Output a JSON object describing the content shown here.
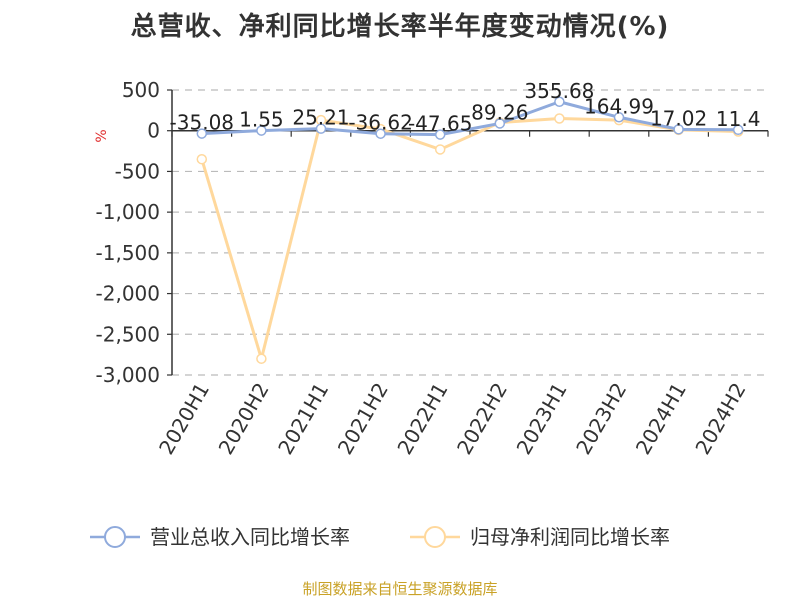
{
  "title": "总营收、净利同比增长率半年度变动情况(%)",
  "source": "制图数据来自恒生聚源数据库",
  "colors": {
    "revenue": "#8faadc",
    "profit": "#ffd89c",
    "grid": "#bbbbbb",
    "axis": "#333333",
    "unit": "#e03030"
  },
  "chart_data": {
    "type": "line",
    "categories": [
      "2020H1",
      "2020H2",
      "2021H1",
      "2021H2",
      "2022H1",
      "2022H2",
      "2023H1",
      "2023H2",
      "2024H1",
      "2024H2"
    ],
    "ylim": [
      -3000,
      500
    ],
    "yticks": [
      500,
      0,
      -500,
      -1000,
      -1500,
      -2000,
      -2500,
      -3000
    ],
    "ytick_labels": [
      "500",
      "0",
      "-500",
      "-1,000",
      "-1,500",
      "-2,000",
      "-2,500",
      "-3,000"
    ],
    "yunit": "%",
    "grid": true,
    "legend_position": "bottom",
    "series": [
      {
        "name": "营业总收入同比增长率",
        "values": [
          -35.08,
          1.55,
          25.21,
          -36.62,
          -47.65,
          89.26,
          355.68,
          164.99,
          17.02,
          11.4
        ],
        "labels": [
          "-35.08",
          "1.55",
          "25.21",
          "-36.62",
          "-47.65",
          "89.26",
          "355.68",
          "164.99",
          "17.02",
          "11.4"
        ]
      },
      {
        "name": "归母净利润同比增长率",
        "values": [
          -350,
          -2800,
          130,
          20,
          -230,
          100,
          150,
          130,
          10,
          -10
        ]
      }
    ]
  }
}
